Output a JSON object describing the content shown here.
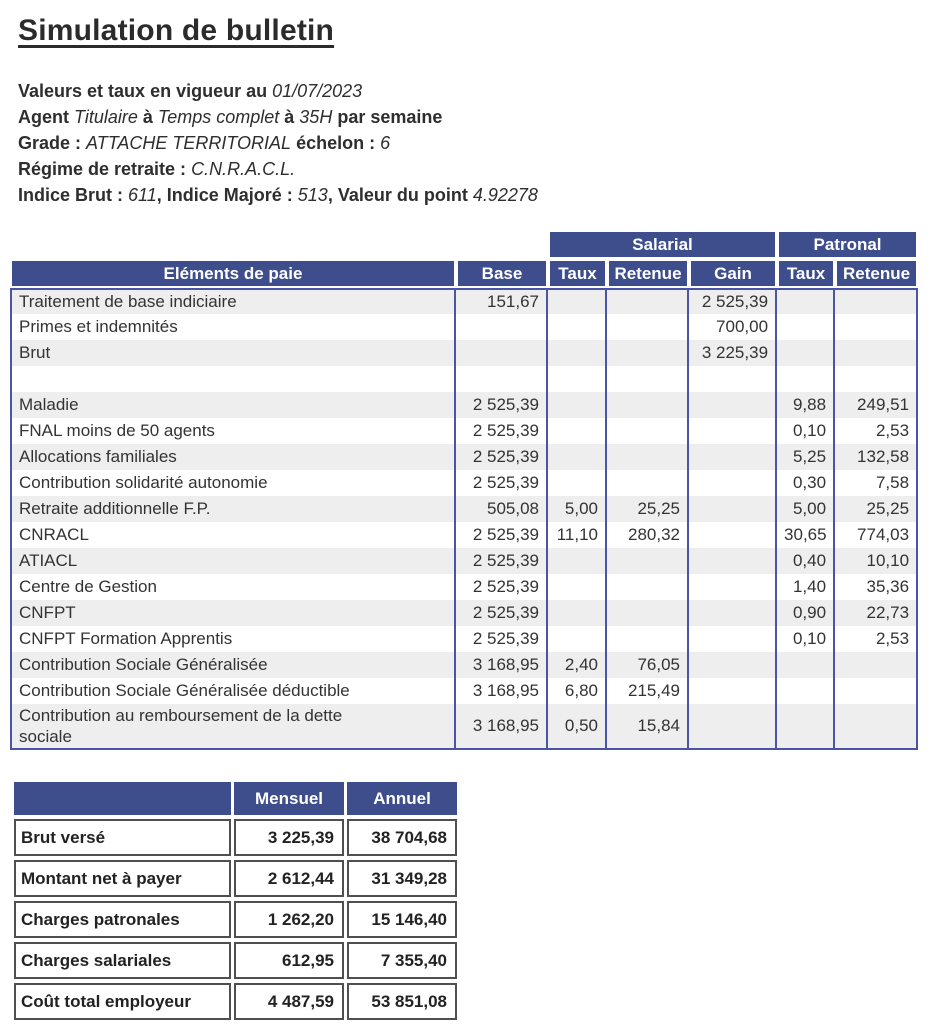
{
  "header": {
    "title": "Simulation de bulletin",
    "lines": [
      {
        "segments": [
          {
            "text": "Valeurs et taux en vigueur au ",
            "style": "bold"
          },
          {
            "text": "01/07/2023",
            "style": "italic"
          }
        ]
      },
      {
        "segments": [
          {
            "text": "Agent ",
            "style": "bold"
          },
          {
            "text": "Titulaire",
            "style": "italic"
          },
          {
            "text": " à ",
            "style": "bold"
          },
          {
            "text": "Temps complet",
            "style": "italic"
          },
          {
            "text": " à ",
            "style": "bold"
          },
          {
            "text": "35H",
            "style": "italic"
          },
          {
            "text": " par semaine",
            "style": "bold"
          }
        ]
      },
      {
        "segments": [
          {
            "text": "Grade : ",
            "style": "bold"
          },
          {
            "text": "ATTACHE TERRITORIAL",
            "style": "italic"
          },
          {
            "text": " échelon : ",
            "style": "bold"
          },
          {
            "text": "6",
            "style": "italic"
          }
        ]
      },
      {
        "segments": [
          {
            "text": "Régime de retraite : ",
            "style": "bold"
          },
          {
            "text": "C.N.R.A.C.L.",
            "style": "italic"
          }
        ]
      },
      {
        "segments": [
          {
            "text": "Indice Brut : ",
            "style": "bold"
          },
          {
            "text": "611",
            "style": "italic"
          },
          {
            "text": ", ",
            "style": "bold"
          },
          {
            "text": "Indice Majoré : ",
            "style": "bold"
          },
          {
            "text": "513",
            "style": "italic"
          },
          {
            "text": ", ",
            "style": "bold"
          },
          {
            "text": "Valeur du point ",
            "style": "bold"
          },
          {
            "text": "4.92278",
            "style": "italic"
          }
        ]
      }
    ]
  },
  "pay_table": {
    "group_headers": {
      "salarial": "Salarial",
      "patronal": "Patronal"
    },
    "column_headers": {
      "elements": "Eléments de paie",
      "base": "Base",
      "s_taux": "Taux",
      "s_retenue": "Retenue",
      "gain": "Gain",
      "p_taux": "Taux",
      "p_retenue": "Retenue"
    },
    "rows": [
      {
        "label": "Traitement de base indiciaire",
        "base": "151,67",
        "s_taux": "",
        "s_retenue": "",
        "gain": "2 525,39",
        "p_taux": "",
        "p_retenue": ""
      },
      {
        "label": "Primes et indemnités",
        "base": "",
        "s_taux": "",
        "s_retenue": "",
        "gain": "700,00",
        "p_taux": "",
        "p_retenue": ""
      },
      {
        "label": "Brut",
        "base": "",
        "s_taux": "",
        "s_retenue": "",
        "gain": "3 225,39",
        "p_taux": "",
        "p_retenue": ""
      },
      {
        "label": "",
        "base": "",
        "s_taux": "",
        "s_retenue": "",
        "gain": "",
        "p_taux": "",
        "p_retenue": ""
      },
      {
        "label": "Maladie",
        "base": "2 525,39",
        "s_taux": "",
        "s_retenue": "",
        "gain": "",
        "p_taux": "9,88",
        "p_retenue": "249,51"
      },
      {
        "label": "FNAL moins de 50 agents",
        "base": "2 525,39",
        "s_taux": "",
        "s_retenue": "",
        "gain": "",
        "p_taux": "0,10",
        "p_retenue": "2,53"
      },
      {
        "label": "Allocations familiales",
        "base": "2 525,39",
        "s_taux": "",
        "s_retenue": "",
        "gain": "",
        "p_taux": "5,25",
        "p_retenue": "132,58"
      },
      {
        "label": "Contribution solidarité autonomie",
        "base": "2 525,39",
        "s_taux": "",
        "s_retenue": "",
        "gain": "",
        "p_taux": "0,30",
        "p_retenue": "7,58"
      },
      {
        "label": "Retraite additionnelle F.P.",
        "base": "505,08",
        "s_taux": "5,00",
        "s_retenue": "25,25",
        "gain": "",
        "p_taux": "5,00",
        "p_retenue": "25,25"
      },
      {
        "label": "CNRACL",
        "base": "2 525,39",
        "s_taux": "11,10",
        "s_retenue": "280,32",
        "gain": "",
        "p_taux": "30,65",
        "p_retenue": "774,03"
      },
      {
        "label": "ATIACL",
        "base": "2 525,39",
        "s_taux": "",
        "s_retenue": "",
        "gain": "",
        "p_taux": "0,40",
        "p_retenue": "10,10"
      },
      {
        "label": "Centre de Gestion",
        "base": "2 525,39",
        "s_taux": "",
        "s_retenue": "",
        "gain": "",
        "p_taux": "1,40",
        "p_retenue": "35,36"
      },
      {
        "label": "CNFPT",
        "base": "2 525,39",
        "s_taux": "",
        "s_retenue": "",
        "gain": "",
        "p_taux": "0,90",
        "p_retenue": "22,73"
      },
      {
        "label": "CNFPT Formation Apprentis",
        "base": "2 525,39",
        "s_taux": "",
        "s_retenue": "",
        "gain": "",
        "p_taux": "0,10",
        "p_retenue": "2,53"
      },
      {
        "label": "Contribution Sociale Généralisée",
        "base": "3 168,95",
        "s_taux": "2,40",
        "s_retenue": "76,05",
        "gain": "",
        "p_taux": "",
        "p_retenue": ""
      },
      {
        "label": "Contribution Sociale Généralisée déductible",
        "base": "3 168,95",
        "s_taux": "6,80",
        "s_retenue": "215,49",
        "gain": "",
        "p_taux": "",
        "p_retenue": ""
      },
      {
        "label": "Contribution au remboursement de la dette sociale",
        "base": "3 168,95",
        "s_taux": "0,50",
        "s_retenue": "15,84",
        "gain": "",
        "p_taux": "",
        "p_retenue": "",
        "tall": true
      }
    ]
  },
  "summary_table": {
    "column_headers": {
      "mensuel": "Mensuel",
      "annuel": "Annuel"
    },
    "rows": [
      {
        "label": "Brut versé",
        "mensuel": "3 225,39",
        "annuel": "38 704,68"
      },
      {
        "label": "Montant net à payer",
        "mensuel": "2 612,44",
        "annuel": "31 349,28"
      },
      {
        "label": "Charges patronales",
        "mensuel": "1 262,20",
        "annuel": "15 146,40"
      },
      {
        "label": "Charges salariales",
        "mensuel": "612,95",
        "annuel": "7 355,40"
      },
      {
        "label": "Coût total employeur",
        "mensuel": "4 487,59",
        "annuel": "53 851,08"
      }
    ]
  },
  "colors": {
    "header_blue": "#3e4d8c",
    "table_border_blue": "#4a55a5",
    "stripe_gray": "#eeeeee",
    "summary_cell_border": "#4f4f4f",
    "text": "#333333"
  }
}
